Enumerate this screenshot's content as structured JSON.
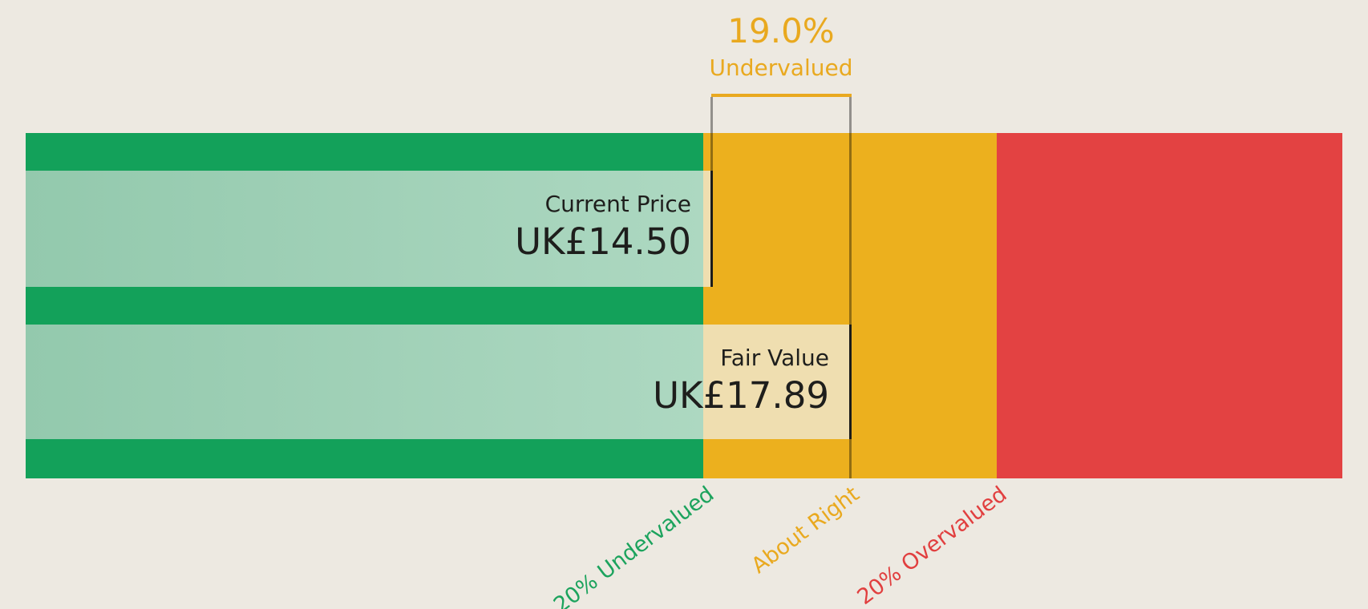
{
  "colors": {
    "background": "#EDE9E1",
    "zone_green": "#13A15A",
    "zone_amber": "#ECB01E",
    "zone_red": "#E34242",
    "band_light_green": "#A6D3BB",
    "band_cream": "#EFDEB0",
    "annotation_amber": "#E9A91F",
    "marker_black": "#1C1C1A",
    "marker_gray": "rgba(0,0,0,0.38)",
    "price_text": "#1E1E1C",
    "axis_green": "#1CA35D",
    "axis_amber": "#E9A91F",
    "axis_red": "#E13F3F"
  },
  "annotation": {
    "percent": "19.0%",
    "status": "Undervalued"
  },
  "current_price": {
    "label": "Current Price",
    "value": "UK£14.50"
  },
  "fair_value": {
    "label": "Fair Value",
    "value": "UK£17.89"
  },
  "axis": {
    "undervalued": "20% Undervalued",
    "about_right": "About Right",
    "overvalued": "20% Overvalued"
  },
  "chart_data": {
    "type": "bar",
    "subtype": "valuation-gauge",
    "currency": "UK£",
    "current_price": 14.5,
    "fair_value": 17.89,
    "discount_percent": 19.0,
    "discount_direction": "Undervalued",
    "zones": [
      {
        "label": "20% Undervalued",
        "price_to_fair_value_ratio": [
          0,
          0.8
        ],
        "color": "#13A15A"
      },
      {
        "label": "About Right",
        "price_to_fair_value_ratio": [
          0.8,
          1.2
        ],
        "color": "#ECB01E"
      },
      {
        "label": "20% Overvalued",
        "price_to_fair_value_ratio": [
          1.2,
          null
        ],
        "color": "#E34242"
      }
    ],
    "markers": [
      {
        "label": "Current Price",
        "value": 14.5,
        "text": "UK£14.50"
      },
      {
        "label": "Fair Value",
        "value": 17.89,
        "text": "UK£17.89"
      }
    ],
    "annotations": [
      "19.0% Undervalued"
    ],
    "legend_position": "none",
    "grid": false
  }
}
